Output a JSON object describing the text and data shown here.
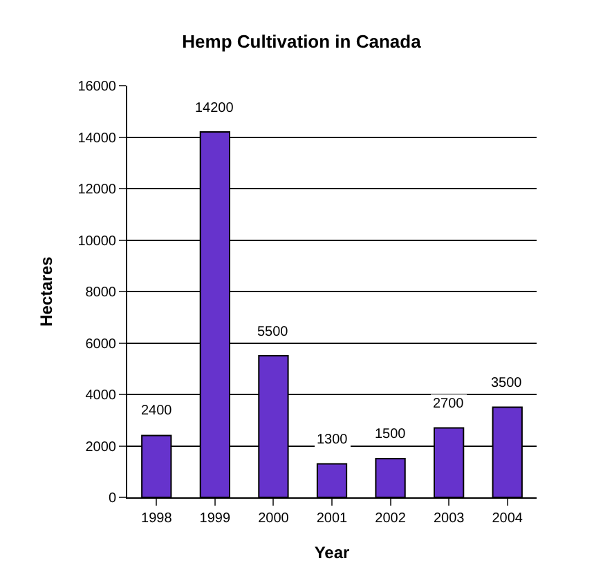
{
  "chart_data": {
    "type": "bar",
    "title": "Hemp Cultivation in Canada",
    "xlabel": "Year",
    "ylabel": "Hectares",
    "categories": [
      "1998",
      "1999",
      "2000",
      "2001",
      "2002",
      "2003",
      "2004"
    ],
    "values": [
      2400,
      14200,
      5500,
      1300,
      1500,
      2700,
      3500
    ],
    "color": "#6633cc",
    "ylim": [
      0,
      16000
    ],
    "yticks": [
      0,
      2000,
      4000,
      6000,
      8000,
      10000,
      12000,
      14000,
      16000
    ],
    "grid": "y",
    "data_labels": true
  }
}
